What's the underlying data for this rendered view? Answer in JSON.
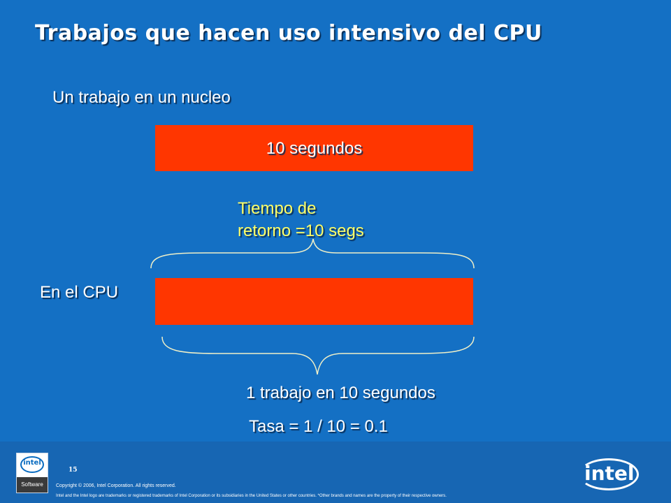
{
  "slide": {
    "title": "Trabajos que hacen uso intensivo del CPU",
    "single_core_label": "Un trabajo en un nucleo",
    "top_bar_label": "10 segundos",
    "turnaround_line1": "Tiempo de",
    "turnaround_line2": "retorno =10 segs",
    "cpu_label": "En el CPU",
    "jobs_label": "1 trabajo en 10 segundos",
    "rate_label": "Tasa = 1 / 10 = 0.1"
  },
  "footer": {
    "page_number": "15",
    "copyright": "Copyright © 2006, Intel Corporation. All rights reserved.",
    "trademark": "Intel and the Intel logo are trademarks or registered trademarks of Intel Corporation or its subsidiaries in the United States or other countries. *Other brands and names are the property of their respective owners.",
    "software_logo_intel": "intel",
    "software_logo_text": "Software",
    "intel_logo_text": "intel"
  },
  "colors": {
    "background": "#1470c4",
    "bar": "#ff3600",
    "highlight_text": "#ffff66"
  }
}
